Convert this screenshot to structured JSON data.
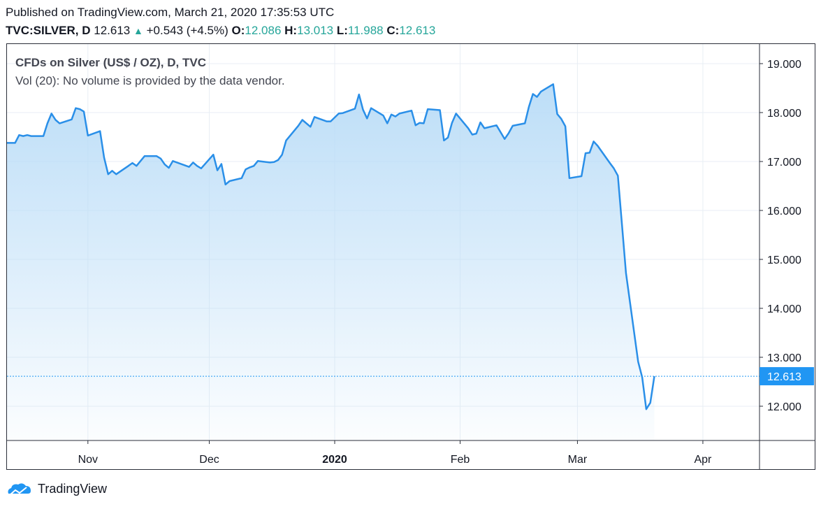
{
  "header": {
    "published": "Published on TradingView.com, March 21, 2020 17:35:53 UTC",
    "symbol": "TVC:SILVER, D",
    "last": "12.613",
    "change": "+0.543 (+4.5%)",
    "open_label": "O:",
    "open": "12.086",
    "high_label": "H:",
    "high": "13.013",
    "low_label": "L:",
    "low": "11.988",
    "close_label": "C:",
    "close": "12.613"
  },
  "legend": {
    "title": "CFDs on Silver (US$ / OZ), D, TVC",
    "volume": "Vol (20): No volume is provided by the data vendor."
  },
  "footer": {
    "brand": "TradingView"
  },
  "colors": {
    "line": "#2a8fe8",
    "fill_top": "#b9dcf7",
    "grid": "#e8eef4",
    "up": "#26a69a",
    "label_bg": "#2196f3"
  },
  "chart_data": {
    "type": "area",
    "title": "CFDs on Silver (US$ / OZ), D, TVC",
    "y_unit": "US$ / OZ",
    "ylim": [
      11.3,
      19.4
    ],
    "y_ticks": [
      "19.000",
      "18.000",
      "17.000",
      "16.000",
      "15.000",
      "14.000",
      "13.000",
      "12.000"
    ],
    "x_ticks": [
      {
        "label": "Nov",
        "date": "2019-11-01"
      },
      {
        "label": "Dec",
        "date": "2019-12-01"
      },
      {
        "label": "2020",
        "date": "2020-01-01",
        "bold": true
      },
      {
        "label": "Feb",
        "date": "2020-02-01"
      },
      {
        "label": "Mar",
        "date": "2020-03-01"
      },
      {
        "label": "Apr",
        "date": "2020-04-01"
      }
    ],
    "xlim": [
      "2019-10-12",
      "2020-04-15"
    ],
    "last_price_label": "12.613",
    "last_price": 12.613,
    "grid": true,
    "series": [
      {
        "x": [
          "2019-10-12",
          "2019-10-14",
          "2019-10-15",
          "2019-10-16",
          "2019-10-17",
          "2019-10-18",
          "2019-10-21",
          "2019-10-22",
          "2019-10-23",
          "2019-10-24",
          "2019-10-25",
          "2019-10-28",
          "2019-10-29",
          "2019-10-30",
          "2019-10-31",
          "2019-11-01",
          "2019-11-04",
          "2019-11-05",
          "2019-11-06",
          "2019-11-07",
          "2019-11-08",
          "2019-11-11",
          "2019-11-12",
          "2019-11-13",
          "2019-11-14",
          "2019-11-15",
          "2019-11-18",
          "2019-11-19",
          "2019-11-20",
          "2019-11-21",
          "2019-11-22",
          "2019-11-25",
          "2019-11-26",
          "2019-11-27",
          "2019-11-28",
          "2019-11-29",
          "2019-12-02",
          "2019-12-03",
          "2019-12-04",
          "2019-12-05",
          "2019-12-06",
          "2019-12-09",
          "2019-12-10",
          "2019-12-11",
          "2019-12-12",
          "2019-12-13",
          "2019-12-16",
          "2019-12-17",
          "2019-12-18",
          "2019-12-19",
          "2019-12-20",
          "2019-12-23",
          "2019-12-24",
          "2019-12-26",
          "2019-12-27",
          "2019-12-30",
          "2019-12-31",
          "2020-01-02",
          "2020-01-03",
          "2020-01-06",
          "2020-01-07",
          "2020-01-08",
          "2020-01-09",
          "2020-01-10",
          "2020-01-13",
          "2020-01-14",
          "2020-01-15",
          "2020-01-16",
          "2020-01-17",
          "2020-01-20",
          "2020-01-21",
          "2020-01-22",
          "2020-01-23",
          "2020-01-24",
          "2020-01-27",
          "2020-01-28",
          "2020-01-29",
          "2020-01-30",
          "2020-01-31",
          "2020-02-03",
          "2020-02-04",
          "2020-02-05",
          "2020-02-06",
          "2020-02-07",
          "2020-02-10",
          "2020-02-11",
          "2020-02-12",
          "2020-02-13",
          "2020-02-14",
          "2020-02-17",
          "2020-02-18",
          "2020-02-19",
          "2020-02-20",
          "2020-02-21",
          "2020-02-24",
          "2020-02-25",
          "2020-02-26",
          "2020-02-27",
          "2020-02-28",
          "2020-03-02",
          "2020-03-03",
          "2020-03-04",
          "2020-03-05",
          "2020-03-06",
          "2020-03-09",
          "2020-03-10",
          "2020-03-11",
          "2020-03-12",
          "2020-03-13",
          "2020-03-16",
          "2020-03-17",
          "2020-03-18",
          "2020-03-19",
          "2020-03-20"
        ],
        "y": [
          17.38,
          17.38,
          17.54,
          17.52,
          17.54,
          17.52,
          17.52,
          17.78,
          17.98,
          17.85,
          17.78,
          17.86,
          18.09,
          18.07,
          18.02,
          17.53,
          17.62,
          17.08,
          16.74,
          16.81,
          16.74,
          16.91,
          16.97,
          16.91,
          17.01,
          17.11,
          17.11,
          17.06,
          16.94,
          16.87,
          17.01,
          16.92,
          16.89,
          16.98,
          16.91,
          16.86,
          17.14,
          16.82,
          16.95,
          16.53,
          16.6,
          16.66,
          16.84,
          16.88,
          16.91,
          17.01,
          16.98,
          16.99,
          17.03,
          17.14,
          17.43,
          17.73,
          17.85,
          17.71,
          17.91,
          17.82,
          17.82,
          17.98,
          17.99,
          18.08,
          18.37,
          18.06,
          17.88,
          18.09,
          17.94,
          17.78,
          17.96,
          17.92,
          17.98,
          18.04,
          17.74,
          17.79,
          17.78,
          18.07,
          18.05,
          17.43,
          17.49,
          17.79,
          17.98,
          17.68,
          17.55,
          17.57,
          17.8,
          17.68,
          17.74,
          17.6,
          17.46,
          17.58,
          17.73,
          17.78,
          18.12,
          18.38,
          18.32,
          18.43,
          18.58,
          17.97,
          17.87,
          17.72,
          16.66,
          16.7,
          17.17,
          17.18,
          17.41,
          17.32,
          16.97,
          16.86,
          16.71,
          15.72,
          14.72,
          12.91,
          12.59,
          11.94,
          12.07,
          12.613
        ]
      }
    ]
  }
}
